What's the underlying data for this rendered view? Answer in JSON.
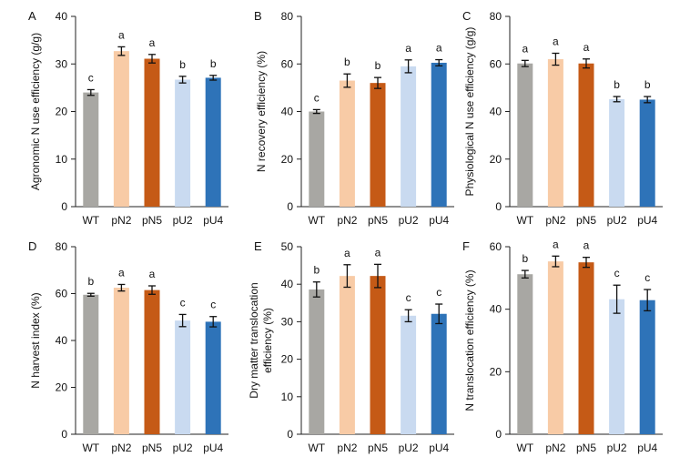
{
  "chart_data": [
    {
      "type": "bar",
      "panel_label": "A",
      "ylabel": "Agronomic N use efficiency (g/g)",
      "categories": [
        "WT",
        "pN2",
        "pN5",
        "pU2",
        "pU4"
      ],
      "values": [
        24.0,
        32.7,
        31.1,
        26.7,
        27.1
      ],
      "errors": [
        0.6,
        0.9,
        0.9,
        0.7,
        0.5
      ],
      "letters": [
        "c",
        "a",
        "a",
        "b",
        "b"
      ],
      "ylim": [
        0,
        40
      ],
      "yticks": [
        "0",
        "10",
        "20",
        "30",
        "40"
      ],
      "colors": [
        "#a8a7a3",
        "#f8cba6",
        "#c55a16",
        "#c9daf0",
        "#2e73b8"
      ]
    },
    {
      "type": "bar",
      "panel_label": "B",
      "ylabel": "N recovery efficiency (%)",
      "categories": [
        "WT",
        "pN2",
        "pN5",
        "pU2",
        "pU4"
      ],
      "values": [
        40.0,
        53.0,
        52.0,
        59.0,
        60.5
      ],
      "errors": [
        0.8,
        2.8,
        2.3,
        2.7,
        1.3
      ],
      "letters": [
        "c",
        "b",
        "b",
        "a",
        "a"
      ],
      "ylim": [
        0,
        80
      ],
      "yticks": [
        "0",
        "20",
        "40",
        "60",
        "80"
      ],
      "colors": [
        "#a8a7a3",
        "#f8cba6",
        "#c55a16",
        "#c9daf0",
        "#2e73b8"
      ]
    },
    {
      "type": "bar",
      "panel_label": "C",
      "ylabel": "Physiological N use efficiency (g/g)",
      "categories": [
        "WT",
        "pN2",
        "pN5",
        "pU2",
        "pU4"
      ],
      "values": [
        60.2,
        62.0,
        60.2,
        45.2,
        45.0
      ],
      "errors": [
        1.3,
        2.5,
        1.9,
        1.1,
        1.3
      ],
      "letters": [
        "a",
        "a",
        "a",
        "b",
        "b"
      ],
      "ylim": [
        0,
        80
      ],
      "yticks": [
        "0",
        "20",
        "40",
        "60",
        "80"
      ],
      "colors": [
        "#a8a7a3",
        "#f8cba6",
        "#c55a16",
        "#c9daf0",
        "#2e73b8"
      ]
    },
    {
      "type": "bar",
      "panel_label": "D",
      "ylabel": "N harvest index (%)",
      "categories": [
        "WT",
        "pN2",
        "pN5",
        "pU2",
        "pU4"
      ],
      "values": [
        59.5,
        62.5,
        61.5,
        48.5,
        48.0
      ],
      "errors": [
        0.6,
        1.4,
        1.8,
        2.6,
        2.2
      ],
      "letters": [
        "b",
        "a",
        "a",
        "c",
        "c"
      ],
      "ylim": [
        0,
        80
      ],
      "yticks": [
        "0",
        "20",
        "40",
        "60",
        "80"
      ],
      "colors": [
        "#a8a7a3",
        "#f8cba6",
        "#c55a16",
        "#c9daf0",
        "#2e73b8"
      ]
    },
    {
      "type": "bar",
      "panel_label": "E",
      "ylabel": "Dry matter translocation efficiency (%)",
      "ylabel_lines": [
        "Dry matter translocation",
        "efficiency (%)"
      ],
      "categories": [
        "WT",
        "pN2",
        "pN5",
        "pU2",
        "pU4"
      ],
      "values": [
        38.6,
        42.2,
        42.2,
        31.6,
        32.1
      ],
      "errors": [
        2.0,
        3.0,
        3.1,
        1.6,
        2.6
      ],
      "letters": [
        "b",
        "a",
        "a",
        "c",
        "c"
      ],
      "ylim": [
        0,
        50
      ],
      "yticks": [
        "0",
        "10",
        "20",
        "30",
        "40",
        "50"
      ],
      "colors": [
        "#a8a7a3",
        "#f8cba6",
        "#c55a16",
        "#c9daf0",
        "#2e73b8"
      ]
    },
    {
      "type": "bar",
      "panel_label": "F",
      "ylabel": "N translocation efficiency  (%)",
      "categories": [
        "WT",
        "pN2",
        "pN5",
        "pU2",
        "pU4"
      ],
      "values": [
        51.2,
        55.3,
        55.0,
        43.2,
        42.9
      ],
      "errors": [
        1.2,
        1.7,
        1.6,
        4.5,
        3.4
      ],
      "letters": [
        "b",
        "a",
        "a",
        "c",
        "c"
      ],
      "ylim": [
        0,
        60
      ],
      "yticks": [
        "0",
        "20",
        "40",
        "60"
      ],
      "colors": [
        "#a8a7a3",
        "#f8cba6",
        "#c55a16",
        "#c9daf0",
        "#2e73b8"
      ]
    }
  ]
}
